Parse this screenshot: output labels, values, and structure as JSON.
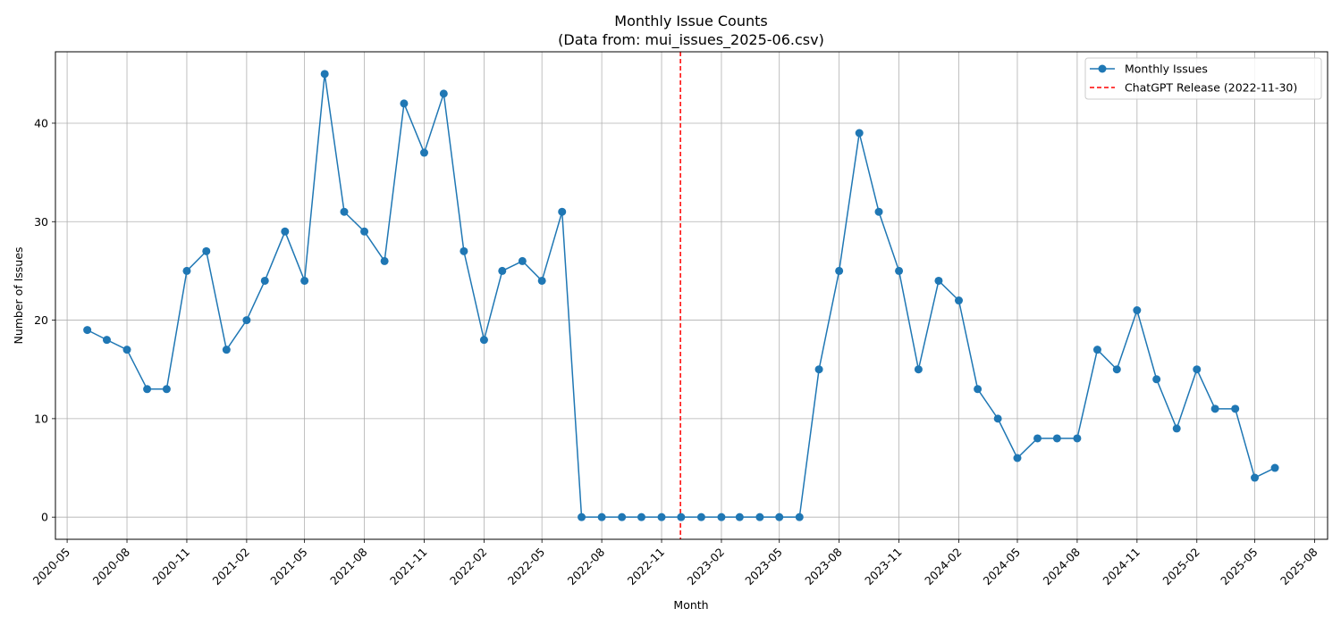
{
  "chart_data": {
    "type": "line",
    "title": "Monthly Issue Counts",
    "subtitle": "(Data from: mui_issues_2025-06.csv)",
    "xlabel": "Month",
    "ylabel": "Number of Issues",
    "xlim": [
      "2020-05",
      "2025-08"
    ],
    "ylim": [
      -2.25,
      47.25
    ],
    "grid": true,
    "legend_position": "top-right",
    "x_ticks": [
      "2020-05",
      "2020-08",
      "2020-11",
      "2021-02",
      "2021-05",
      "2021-08",
      "2021-11",
      "2022-02",
      "2022-05",
      "2022-08",
      "2022-11",
      "2023-02",
      "2023-05",
      "2023-08",
      "2023-11",
      "2024-02",
      "2024-05",
      "2024-08",
      "2024-11",
      "2025-02",
      "2025-05",
      "2025-08"
    ],
    "y_ticks": [
      0,
      10,
      20,
      30,
      40
    ],
    "series": [
      {
        "name": "Monthly Issues",
        "color": "#1f77b4",
        "marker": "circle",
        "x": [
          "2020-06",
          "2020-07",
          "2020-08",
          "2020-09",
          "2020-10",
          "2020-11",
          "2020-12",
          "2021-01",
          "2021-02",
          "2021-03",
          "2021-04",
          "2021-05",
          "2021-06",
          "2021-07",
          "2021-08",
          "2021-09",
          "2021-10",
          "2021-11",
          "2021-12",
          "2022-01",
          "2022-02",
          "2022-03",
          "2022-04",
          "2022-05",
          "2022-06",
          "2022-07",
          "2022-08",
          "2022-09",
          "2022-10",
          "2022-11",
          "2022-12",
          "2023-01",
          "2023-02",
          "2023-03",
          "2023-04",
          "2023-05",
          "2023-06",
          "2023-07",
          "2023-08",
          "2023-09",
          "2023-10",
          "2023-11",
          "2023-12",
          "2024-01",
          "2024-02",
          "2024-03",
          "2024-04",
          "2024-05",
          "2024-06",
          "2024-07",
          "2024-08",
          "2024-09",
          "2024-10",
          "2024-11",
          "2024-12",
          "2025-01",
          "2025-02",
          "2025-03",
          "2025-04",
          "2025-05",
          "2025-06"
        ],
        "values": [
          19,
          18,
          17,
          13,
          13,
          25,
          27,
          17,
          20,
          24,
          29,
          24,
          45,
          31,
          29,
          26,
          42,
          37,
          43,
          27,
          18,
          25,
          26,
          24,
          31,
          0,
          0,
          0,
          0,
          0,
          0,
          0,
          0,
          0,
          0,
          0,
          0,
          15,
          25,
          39,
          31,
          25,
          15,
          24,
          22,
          13,
          10,
          6,
          8,
          8,
          8,
          17,
          15,
          21,
          14,
          9,
          15,
          11,
          11,
          4,
          5
        ]
      }
    ],
    "reference_lines": [
      {
        "name": "ChatGPT Release (2022-11-30)",
        "x": "2022-11-30",
        "color": "#ff0000",
        "style": "dashed"
      }
    ]
  }
}
